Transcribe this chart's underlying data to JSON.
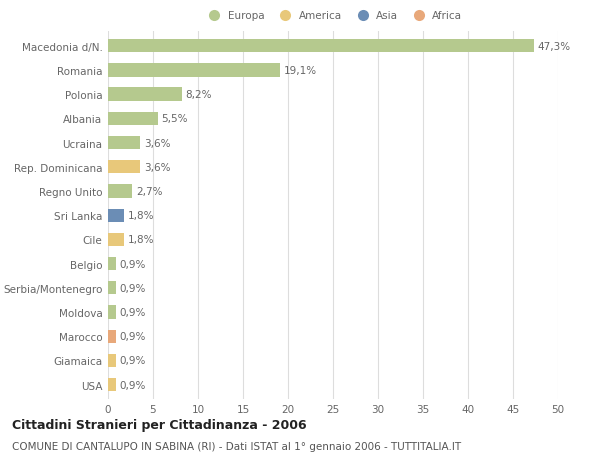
{
  "categories": [
    "Macedonia d/N.",
    "Romania",
    "Polonia",
    "Albania",
    "Ucraina",
    "Rep. Dominicana",
    "Regno Unito",
    "Sri Lanka",
    "Cile",
    "Belgio",
    "Serbia/Montenegro",
    "Moldova",
    "Marocco",
    "Giamaica",
    "USA"
  ],
  "values": [
    47.3,
    19.1,
    8.2,
    5.5,
    3.6,
    3.6,
    2.7,
    1.8,
    1.8,
    0.9,
    0.9,
    0.9,
    0.9,
    0.9,
    0.9
  ],
  "labels": [
    "47,3%",
    "19,1%",
    "8,2%",
    "5,5%",
    "3,6%",
    "3,6%",
    "2,7%",
    "1,8%",
    "1,8%",
    "0,9%",
    "0,9%",
    "0,9%",
    "0,9%",
    "0,9%",
    "0,9%"
  ],
  "continents": [
    "Europa",
    "Europa",
    "Europa",
    "Europa",
    "Europa",
    "America",
    "Europa",
    "Asia",
    "America",
    "Europa",
    "Europa",
    "Europa",
    "Africa",
    "America",
    "America"
  ],
  "colors": {
    "Europa": "#b5c98e",
    "America": "#e8c87a",
    "Asia": "#6b8db5",
    "Africa": "#e8a87a"
  },
  "xlim": [
    0,
    50
  ],
  "xticks": [
    0,
    5,
    10,
    15,
    20,
    25,
    30,
    35,
    40,
    45,
    50
  ],
  "title": "Cittadini Stranieri per Cittadinanza - 2006",
  "subtitle": "COMUNE DI CANTALUPO IN SABINA (RI) - Dati ISTAT al 1° gennaio 2006 - TUTTITALIA.IT",
  "background_color": "#ffffff",
  "bar_height": 0.55,
  "grid_color": "#dddddd",
  "label_fontsize": 7.5,
  "tick_fontsize": 7.5,
  "title_fontsize": 9,
  "subtitle_fontsize": 7.5,
  "legend_order": [
    "Europa",
    "America",
    "Asia",
    "Africa"
  ]
}
